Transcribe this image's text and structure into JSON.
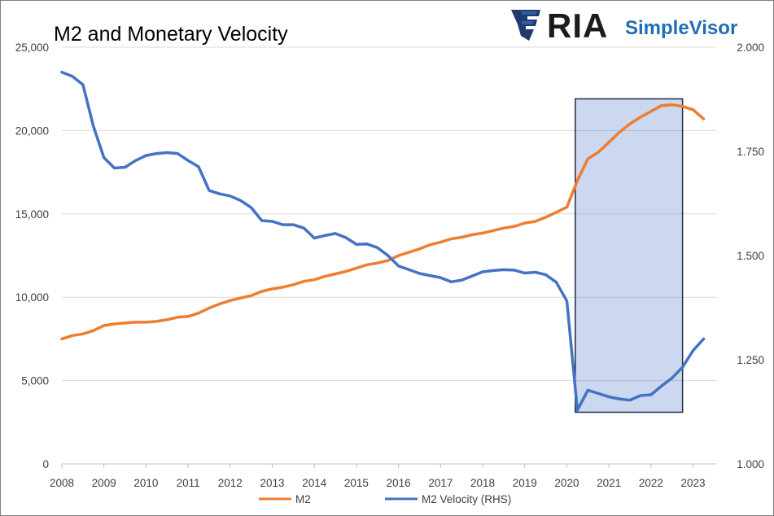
{
  "logo": {
    "brand": "RIA",
    "product": "SimpleVisor"
  },
  "colors": {
    "m2": "#ED7D31",
    "velocity": "#4472C4",
    "highlight_fill": "#4472C4",
    "highlight_border": "#1F2A44",
    "grid": "#D9D9D9",
    "axis": "#BFBFBF"
  },
  "chart_data": {
    "type": "line",
    "title": "M2 and Monetary Velocity",
    "xlabel": "",
    "ylabel": "",
    "x": [
      2008.0,
      2008.25,
      2008.5,
      2008.75,
      2009.0,
      2009.25,
      2009.5,
      2009.75,
      2010.0,
      2010.25,
      2010.5,
      2010.75,
      2011.0,
      2011.25,
      2011.5,
      2011.75,
      2012.0,
      2012.25,
      2012.5,
      2012.75,
      2013.0,
      2013.25,
      2013.5,
      2013.75,
      2014.0,
      2014.25,
      2014.5,
      2014.75,
      2015.0,
      2015.25,
      2015.5,
      2015.75,
      2016.0,
      2016.25,
      2016.5,
      2016.75,
      2017.0,
      2017.25,
      2017.5,
      2017.75,
      2018.0,
      2018.25,
      2018.5,
      2018.75,
      2019.0,
      2019.25,
      2019.5,
      2019.75,
      2020.0,
      2020.25,
      2020.5,
      2020.75,
      2021.0,
      2021.25,
      2021.5,
      2021.75,
      2022.0,
      2022.25,
      2022.5,
      2022.75,
      2023.0,
      2023.25
    ],
    "x_ticks": [
      "2008",
      "2009",
      "2010",
      "2011",
      "2012",
      "2013",
      "2014",
      "2015",
      "2016",
      "2017",
      "2018",
      "2019",
      "2020",
      "2021",
      "2022",
      "2023"
    ],
    "left_axis": {
      "ylim": [
        0,
        25000
      ],
      "ticks": [
        "0",
        "5,000",
        "10,000",
        "15,000",
        "20,000",
        "25,000"
      ],
      "tick_values": [
        0,
        5000,
        10000,
        15000,
        20000,
        25000
      ]
    },
    "right_axis": {
      "ylim": [
        1.0,
        2.0
      ],
      "ticks": [
        "1.000",
        "1.250",
        "1.500",
        "1.750",
        "2.000"
      ],
      "tick_values": [
        1.0,
        1.25,
        1.5,
        1.75,
        2.0
      ]
    },
    "series": [
      {
        "name": "M2",
        "axis": "left",
        "color": "#ED7D31",
        "values": [
          7500,
          7700,
          7800,
          8000,
          8300,
          8400,
          8450,
          8500,
          8500,
          8550,
          8650,
          8800,
          8850,
          9050,
          9350,
          9600,
          9800,
          9950,
          10100,
          10350,
          10500,
          10600,
          10750,
          10950,
          11050,
          11250,
          11400,
          11550,
          11750,
          11950,
          12050,
          12200,
          12500,
          12700,
          12900,
          13150,
          13300,
          13500,
          13600,
          13750,
          13850,
          14000,
          14150,
          14250,
          14450,
          14550,
          14800,
          15100,
          15400,
          17000,
          18300,
          18700,
          19300,
          19900,
          20400,
          20800,
          21150,
          21500,
          21550,
          21450,
          21250,
          20700
        ]
      },
      {
        "name": "M2 Velocity (RHS)",
        "axis": "right",
        "color": "#4472C4",
        "values": [
          1.94,
          1.93,
          1.91,
          1.81,
          1.735,
          1.71,
          1.712,
          1.728,
          1.74,
          1.745,
          1.747,
          1.745,
          1.728,
          1.713,
          1.656,
          1.648,
          1.643,
          1.632,
          1.615,
          1.584,
          1.582,
          1.574,
          1.574,
          1.566,
          1.542,
          1.548,
          1.553,
          1.543,
          1.527,
          1.528,
          1.519,
          1.5,
          1.475,
          1.466,
          1.457,
          1.452,
          1.447,
          1.437,
          1.441,
          1.451,
          1.461,
          1.464,
          1.466,
          1.465,
          1.458,
          1.46,
          1.454,
          1.436,
          1.391,
          1.129,
          1.177,
          1.169,
          1.161,
          1.156,
          1.153,
          1.164,
          1.166,
          1.187,
          1.206,
          1.232,
          1.272,
          1.3
        ]
      }
    ],
    "highlight": {
      "x_start": 2020.2,
      "x_end": 2022.75,
      "y_start": 3100,
      "y_end": 21900
    },
    "grid": true,
    "legend_position": "bottom-center"
  }
}
